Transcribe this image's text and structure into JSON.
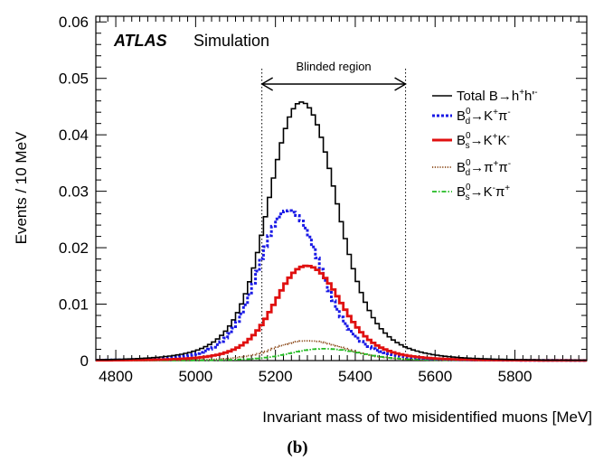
{
  "chart_data": {
    "type": "line",
    "step": true,
    "experiment": "ATLAS",
    "experiment_note": "Simulation",
    "xlabel": "Invariant mass of two misidentified muons [MeV]",
    "ylabel": "Events / 10 MeV",
    "panel_label": "(b)",
    "xlim": [
      4750,
      5980
    ],
    "ylim": [
      0,
      0.061
    ],
    "xticks": [
      4800,
      5000,
      5200,
      5400,
      5600,
      5800
    ],
    "yticks": [
      0,
      0.01,
      0.02,
      0.03,
      0.04,
      0.05,
      0.06
    ],
    "ytick_labels": [
      "0",
      "0.01",
      "0.02",
      "0.03",
      "0.04",
      "0.05",
      "0.06"
    ],
    "blinded_region": {
      "label": "Blinded region",
      "range": [
        5166,
        5526
      ]
    },
    "series": [
      {
        "name": "Total B→h⁺h′⁻",
        "color": "#000000",
        "style": "solid",
        "peak_x": 5265,
        "peak_y": 0.0458,
        "width_left": 88,
        "width_right": 95,
        "tail_base": 0.0018,
        "x": [
          4800,
          4900,
          5000,
          5050,
          5100,
          5150,
          5200,
          5240,
          5265,
          5300,
          5350,
          5400,
          5450,
          5500,
          5600,
          5700,
          5800,
          5950
        ],
        "y": [
          0.001,
          0.002,
          0.004,
          0.0065,
          0.012,
          0.021,
          0.034,
          0.0435,
          0.0458,
          0.042,
          0.029,
          0.018,
          0.012,
          0.009,
          0.005,
          0.003,
          0.0018,
          0.001
        ]
      },
      {
        "name": "B_d⁰→K⁺π⁻",
        "color": "#1a1ae6",
        "style": "dotted",
        "peak_x": 5232,
        "peak_y": 0.0266,
        "width_left": 80,
        "width_right": 88,
        "tail_base": 0.0008,
        "x": [
          4800,
          4900,
          5000,
          5100,
          5150,
          5200,
          5232,
          5280,
          5350,
          5400,
          5500,
          5600,
          5800,
          5950
        ],
        "y": [
          0.0008,
          0.0015,
          0.0035,
          0.009,
          0.015,
          0.023,
          0.0266,
          0.023,
          0.013,
          0.008,
          0.004,
          0.002,
          0.0009,
          0.0005
        ]
      },
      {
        "name": "B_s⁰→K⁺K⁻",
        "color": "#e01010",
        "style": "solid",
        "peak_x": 5278,
        "peak_y": 0.0168,
        "width_left": 85,
        "width_right": 92,
        "tail_base": 0.0008,
        "x": [
          4800,
          4900,
          5000,
          5100,
          5150,
          5200,
          5250,
          5278,
          5320,
          5400,
          5500,
          5600,
          5800,
          5950
        ],
        "y": [
          0.0005,
          0.0008,
          0.0016,
          0.004,
          0.007,
          0.011,
          0.0155,
          0.0168,
          0.015,
          0.0085,
          0.0045,
          0.0025,
          0.001,
          0.0005
        ]
      },
      {
        "name": "B_d⁰→π⁺π⁻",
        "color": "#8b4a1a",
        "style": "dotted-fine",
        "peak_x": 5280,
        "peak_y": 0.0035,
        "width_left": 90,
        "width_right": 100,
        "tail_base": 0.0002,
        "x": [
          4800,
          5000,
          5100,
          5200,
          5280,
          5350,
          5450,
          5600,
          5950
        ],
        "y": [
          0.0001,
          0.0004,
          0.001,
          0.0025,
          0.0035,
          0.003,
          0.0017,
          0.0006,
          0.0001
        ]
      },
      {
        "name": "B_s⁰→K⁻π⁺",
        "color": "#22bb22",
        "style": "dashdot",
        "peak_x": 5320,
        "peak_y": 0.0021,
        "width_left": 90,
        "width_right": 100,
        "tail_base": 0.0002,
        "x": [
          4800,
          5000,
          5100,
          5200,
          5320,
          5400,
          5500,
          5600,
          5950
        ],
        "y": [
          0.0001,
          0.0003,
          0.0007,
          0.0014,
          0.0021,
          0.0018,
          0.0011,
          0.0005,
          0.0001
        ]
      }
    ]
  },
  "legend": {
    "total": {
      "prefix": "Total B",
      "arrow": "→",
      "h": "h",
      "plus": "+",
      "hp": "h'",
      "minus": "-"
    },
    "bd_kpi": {
      "B": "B",
      "sub": "d",
      "sup": "0",
      "arrow": "→",
      "p1": "K",
      "s1": "+",
      "p2": "π",
      "s2": "-"
    },
    "bs_kk": {
      "B": "B",
      "sub": "s",
      "sup": "0",
      "arrow": "→",
      "p1": "K",
      "s1": "+",
      "p2": "K",
      "s2": "-"
    },
    "bd_pipi": {
      "B": "B",
      "sub": "d",
      "sup": "0",
      "arrow": "→",
      "p1": "π",
      "s1": "+",
      "p2": "π",
      "s2": "-"
    },
    "bs_kpi": {
      "B": "B",
      "sub": "s",
      "sup": "0",
      "arrow": "→",
      "p1": "K",
      "s1": "-",
      "p2": "π",
      "s2": "+"
    }
  }
}
